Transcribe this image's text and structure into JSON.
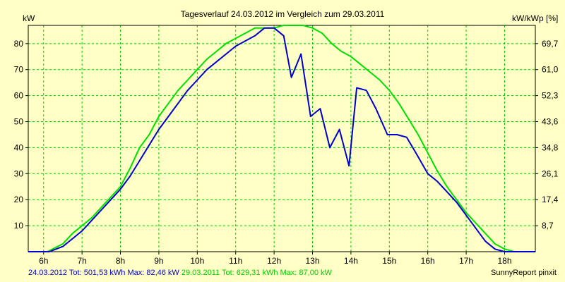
{
  "chart_data": {
    "type": "line",
    "title": "Tagesverlauf 24.03.2012 im Vergleich zum 29.03.2011",
    "ylabel_left": "kW",
    "ylabel_right": "kW/kWp [%]",
    "xlim": [
      5.6,
      18.8
    ],
    "ylim": [
      0,
      87
    ],
    "x_ticks": [
      6,
      7,
      8,
      9,
      10,
      11,
      12,
      13,
      14,
      15,
      16,
      17,
      18
    ],
    "x_tick_labels": [
      "6h",
      "7h",
      "8h",
      "9h",
      "10h",
      "11h",
      "12h",
      "13h",
      "14h",
      "15h",
      "16h",
      "17h",
      "18h"
    ],
    "y_ticks_left": [
      10,
      20,
      30,
      40,
      50,
      60,
      70,
      80
    ],
    "y_ticks_right": [
      "8,7",
      "17,4",
      "26,1",
      "34,8",
      "43,6",
      "52,3",
      "61,0",
      "69,7"
    ],
    "grid": true,
    "colors": {
      "series_2012": "#0000cc",
      "series_2011": "#00e000",
      "grid": "#00cc00",
      "frame": "#000000"
    },
    "series": [
      {
        "name": "24.03.2012",
        "color": "#0000cc",
        "x": [
          5.6,
          6.15,
          6.5,
          6.75,
          7.0,
          7.25,
          7.5,
          7.75,
          8.0,
          8.25,
          8.5,
          8.75,
          9.0,
          9.25,
          9.5,
          9.75,
          10.0,
          10.25,
          10.5,
          10.75,
          11.0,
          11.25,
          11.5,
          11.75,
          12.0,
          12.25,
          12.45,
          12.7,
          12.95,
          13.2,
          13.45,
          13.7,
          13.95,
          14.15,
          14.4,
          14.65,
          14.95,
          15.2,
          15.45,
          15.65,
          16.0,
          16.25,
          16.5,
          16.75,
          17.0,
          17.25,
          17.5,
          17.75,
          18.0,
          18.25,
          18.5,
          18.8
        ],
        "y": [
          0,
          0,
          2,
          5,
          8,
          12,
          16,
          20,
          24,
          29,
          35,
          41,
          47,
          52,
          57,
          62,
          66,
          70,
          73,
          76,
          79,
          81,
          83,
          86,
          86,
          83,
          67,
          76,
          52,
          55,
          40,
          47,
          33,
          63,
          62,
          55,
          45,
          45,
          44,
          39,
          30,
          27,
          23,
          19,
          14,
          9,
          4,
          1,
          0,
          0,
          0,
          0
        ],
        "tot": "501,53 kWh",
        "max": "82,46 kW"
      },
      {
        "name": "29.03.2011",
        "color": "#00e000",
        "x": [
          5.6,
          6.1,
          6.5,
          6.75,
          7.0,
          7.25,
          7.5,
          7.75,
          8.0,
          8.25,
          8.5,
          8.75,
          9.0,
          9.25,
          9.5,
          9.75,
          10.0,
          10.25,
          10.5,
          10.75,
          11.0,
          11.25,
          11.5,
          11.75,
          12.0,
          12.25,
          12.5,
          12.75,
          13.0,
          13.25,
          13.5,
          13.75,
          14.0,
          14.25,
          14.5,
          14.75,
          15.0,
          15.25,
          15.5,
          15.75,
          16.0,
          16.25,
          16.5,
          16.75,
          17.0,
          17.25,
          17.5,
          17.75,
          18.0,
          18.25,
          18.5,
          18.8
        ],
        "y": [
          0,
          0,
          3,
          7,
          10,
          13,
          17,
          21,
          25,
          32,
          40,
          45,
          52,
          57,
          62,
          66,
          70,
          74,
          77,
          80,
          82,
          84,
          86,
          86,
          86,
          87,
          87,
          87,
          86,
          84,
          80,
          77,
          75,
          72,
          69,
          66,
          62,
          57,
          51,
          45,
          38,
          31,
          25,
          20,
          15,
          11,
          7,
          3,
          1,
          0,
          0,
          0
        ]
      }
    ],
    "footer": {
      "entry_2012": "24.03.2012 Tot: 501,53 kWh Max: 82,46 kW",
      "entry_2011": "29.03.2011 Tot: 629,31 kWh Max: 87,00 kW",
      "credit": "SunnyReport pinxit"
    }
  }
}
